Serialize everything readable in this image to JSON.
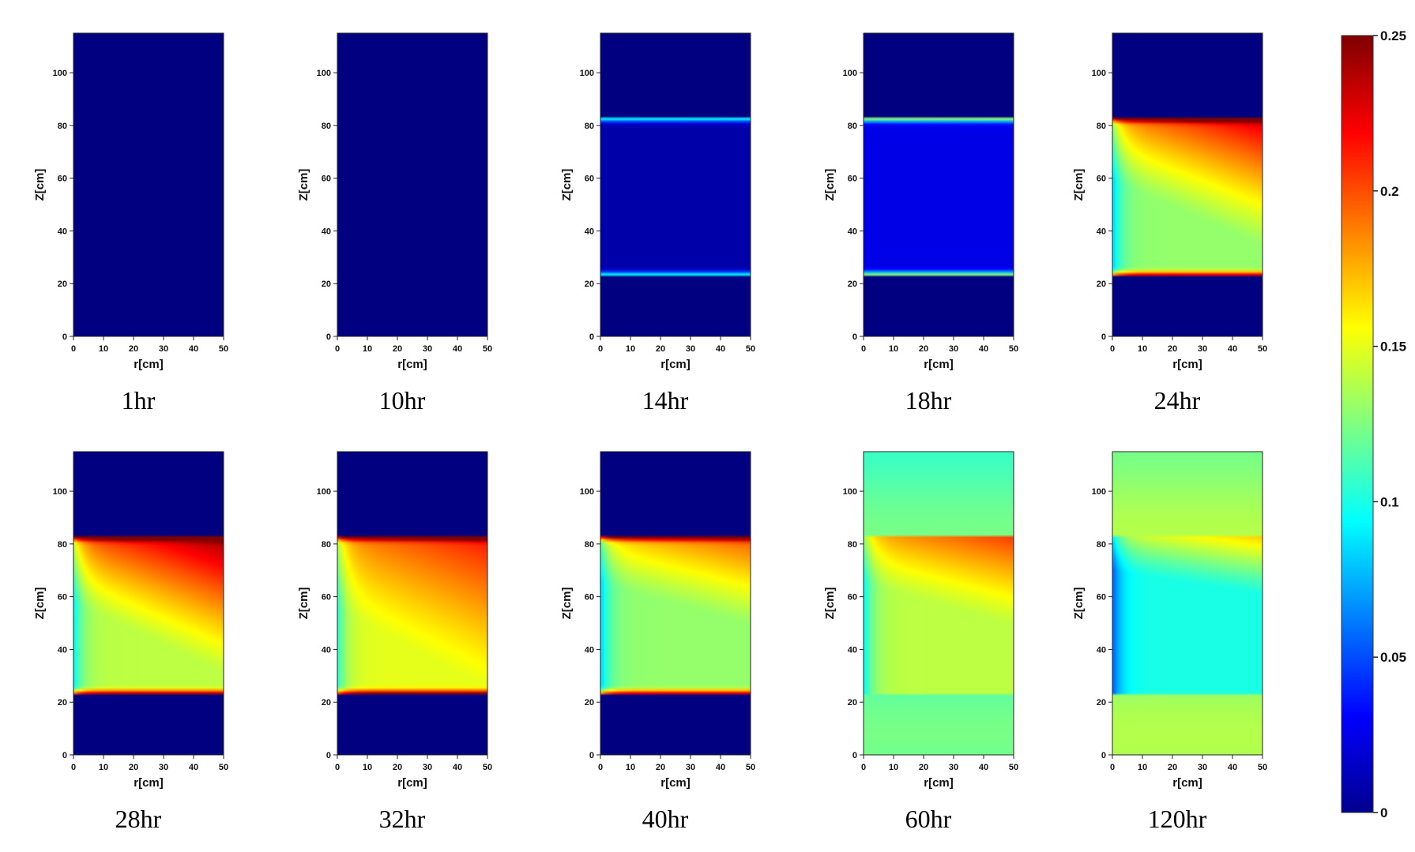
{
  "chart_data": {
    "type": "heatmap",
    "colormap": "jet",
    "value_range": [
      0,
      0.25
    ],
    "colorbar": {
      "placement": "right",
      "ticks": [
        {
          "value": 0,
          "label": "0"
        },
        {
          "value": 0.05,
          "label": "0.05"
        },
        {
          "value": 0.1,
          "label": "0.1"
        },
        {
          "value": 0.15,
          "label": "0.15"
        },
        {
          "value": 0.2,
          "label": "0.2"
        },
        {
          "value": 0.25,
          "label": "0.25"
        }
      ]
    },
    "xlabel": "r[cm]",
    "ylabel": "Z[cm]",
    "xlim": [
      0,
      50
    ],
    "ylim": [
      0,
      115
    ],
    "x_ticks": [
      {
        "value": 0,
        "label": "0"
      },
      {
        "value": 10,
        "label": "10"
      },
      {
        "value": 20,
        "label": "20"
      },
      {
        "value": 30,
        "label": "30"
      },
      {
        "value": 40,
        "label": "40"
      },
      {
        "value": 50,
        "label": "50"
      }
    ],
    "y_ticks": [
      {
        "value": 0,
        "label": "0"
      },
      {
        "value": 20,
        "label": "20"
      },
      {
        "value": 40,
        "label": "40"
      },
      {
        "value": 60,
        "label": "60"
      },
      {
        "value": 80,
        "label": "80"
      },
      {
        "value": 100,
        "label": "100"
      }
    ],
    "bed_bottom_z": 23,
    "bed_top_z": 83,
    "panels": [
      {
        "caption": "1hr",
        "background": 0.0,
        "bed_base": 0.0,
        "bed_peak": 0.0,
        "front_depth": 0.0,
        "band_strength": 0.0
      },
      {
        "caption": "10hr",
        "background": 0.0,
        "bed_base": 0.0,
        "bed_peak": 0.0,
        "front_depth": 0.0,
        "band_strength": 0.0
      },
      {
        "caption": "14hr",
        "background": 0.0,
        "bed_base": 0.01,
        "bed_peak": 0.012,
        "front_depth": 0.0,
        "band_strength": 0.09
      },
      {
        "caption": "18hr",
        "background": 0.0,
        "bed_base": 0.025,
        "bed_peak": 0.03,
        "front_depth": 0.0,
        "band_strength": 0.11
      },
      {
        "caption": "24hr",
        "background": 0.0,
        "bed_base": 0.13,
        "bed_peak": 0.23,
        "front_depth": 0.7,
        "band_strength": 0.1
      },
      {
        "caption": "28hr",
        "background": 0.0,
        "bed_base": 0.14,
        "bed_peak": 0.245,
        "front_depth": 0.75,
        "band_strength": 0.1
      },
      {
        "caption": "32hr",
        "background": 0.0,
        "bed_base": 0.15,
        "bed_peak": 0.215,
        "front_depth": 0.85,
        "band_strength": 0.1
      },
      {
        "caption": "40hr",
        "background": 0.0,
        "bed_base": 0.13,
        "bed_peak": 0.2,
        "front_depth": 0.45,
        "band_strength": 0.1
      },
      {
        "caption": "60hr",
        "background": 0.115,
        "bed_base": 0.14,
        "bed_peak": 0.205,
        "front_depth": 0.45,
        "band_strength": 0.0
      },
      {
        "caption": "120hr",
        "background": 0.13,
        "bed_base": 0.1,
        "bed_peak": 0.17,
        "front_depth": 0.25,
        "band_strength": 0.0
      }
    ]
  }
}
